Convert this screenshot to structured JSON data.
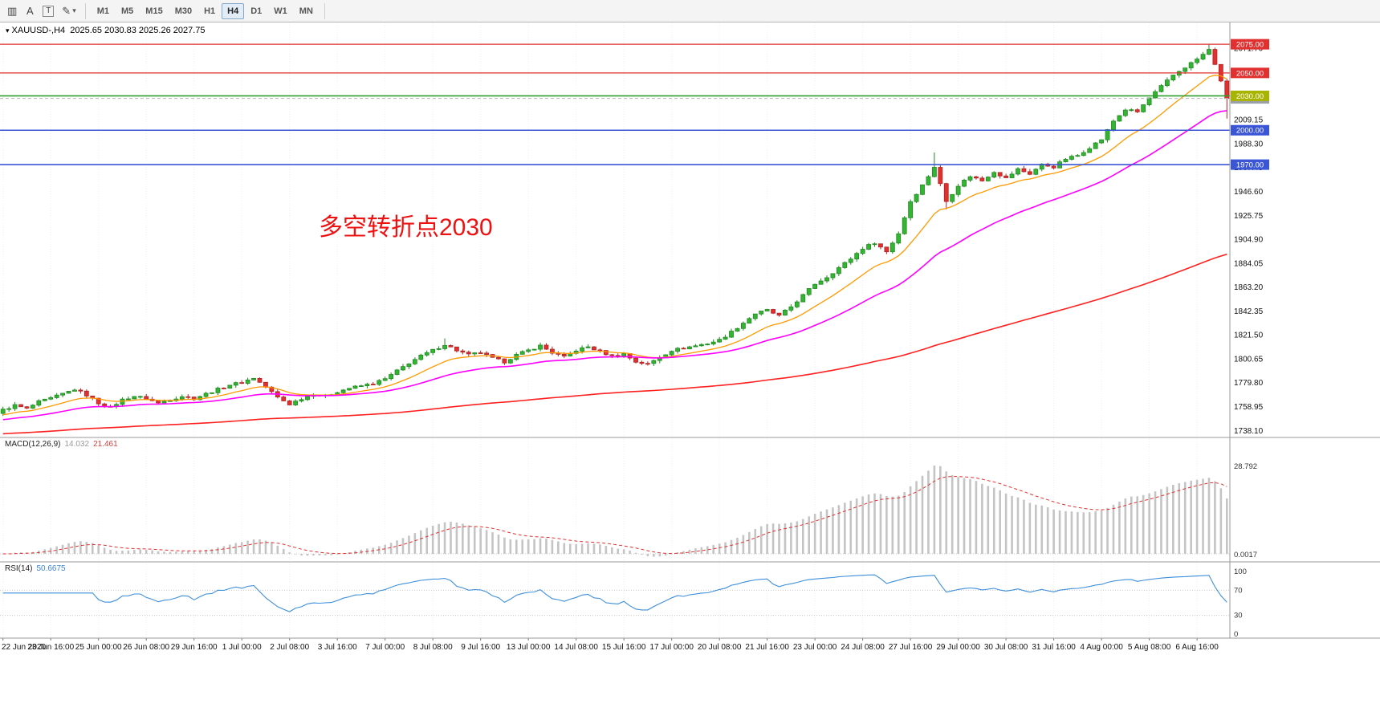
{
  "toolbar": {
    "icons": [
      {
        "name": "chart-bars-icon",
        "glyph": "▥"
      },
      {
        "name": "text-tool-icon",
        "glyph": "A"
      },
      {
        "name": "text-frame-tool-icon",
        "glyph": "T"
      },
      {
        "name": "draw-tools-icon",
        "glyph": "✎"
      },
      {
        "name": "dropdown-chevron-icon",
        "glyph": "▾"
      }
    ],
    "timeframes": [
      "M1",
      "M5",
      "M15",
      "M30",
      "H1",
      "H4",
      "D1",
      "W1",
      "MN"
    ],
    "active_timeframe": "H4"
  },
  "chart": {
    "dropdown_glyph": "▾",
    "title_symbol": "XAUUSD-,H4",
    "title_ohlc": "2025.65 2030.83 2025.26 2027.75",
    "annotation_text": "多空转折点2030",
    "annotation_color": "#ee1111"
  },
  "macd": {
    "name": "MACD(12,26,9)",
    "value1": "14.032",
    "value2": "21.461",
    "scale_top": "28.792",
    "scale_bottom": "0.0017"
  },
  "rsi": {
    "name": "RSI(14)",
    "value": "50.6675",
    "scale_labels": [
      "100",
      "70",
      "30",
      "0"
    ]
  },
  "chart_data": {
    "type": "candlestick",
    "symbol": "XAUUSD-",
    "period": "H4",
    "bars": 206,
    "bars_per_label": 8,
    "x_labels": [
      "22 Jun 2020",
      "23 Jun 16:00",
      "25 Jun 00:00",
      "26 Jun 08:00",
      "29 Jun 16:00",
      "1 Jul 00:00",
      "2 Jul 08:00",
      "3 Jul 16:00",
      "7 Jul 00:00",
      "8 Jul 08:00",
      "9 Jul 16:00",
      "13 Jul 00:00",
      "14 Jul 08:00",
      "15 Jul 16:00",
      "17 Jul 00:00",
      "20 Jul 08:00",
      "21 Jul 16:00",
      "23 Jul 00:00",
      "24 Jul 08:00",
      "27 Jul 16:00",
      "29 Jul 00:00",
      "30 Jul 08:00",
      "31 Jul 16:00",
      "4 Aug 00:00",
      "5 Aug 08:00",
      "6 Aug 16:00"
    ],
    "price_axis": {
      "min": 1732,
      "max": 2094,
      "tick_start": 2071.7,
      "tick_step": 20.85,
      "tick_count": 17
    },
    "first_open": 1753,
    "last_close": 2027.75,
    "noise": 1.1,
    "wick": 2.4,
    "close_anchors": [
      [
        0,
        1756
      ],
      [
        2,
        1760
      ],
      [
        4,
        1757
      ],
      [
        6,
        1763
      ],
      [
        8,
        1766
      ],
      [
        10,
        1770
      ],
      [
        12,
        1774
      ],
      [
        14,
        1769
      ],
      [
        16,
        1762
      ],
      [
        18,
        1758
      ],
      [
        20,
        1765
      ],
      [
        22,
        1768
      ],
      [
        24,
        1766
      ],
      [
        26,
        1762
      ],
      [
        28,
        1765
      ],
      [
        30,
        1768
      ],
      [
        32,
        1766
      ],
      [
        34,
        1770
      ],
      [
        36,
        1774
      ],
      [
        38,
        1778
      ],
      [
        40,
        1780
      ],
      [
        42,
        1784
      ],
      [
        44,
        1776
      ],
      [
        46,
        1767
      ],
      [
        48,
        1761
      ],
      [
        50,
        1766
      ],
      [
        52,
        1770
      ],
      [
        54,
        1768
      ],
      [
        56,
        1772
      ],
      [
        58,
        1775
      ],
      [
        60,
        1777
      ],
      [
        62,
        1779
      ],
      [
        64,
        1783
      ],
      [
        66,
        1790
      ],
      [
        68,
        1797
      ],
      [
        70,
        1803
      ],
      [
        72,
        1808
      ],
      [
        74,
        1813
      ],
      [
        76,
        1808
      ],
      [
        78,
        1804
      ],
      [
        80,
        1806
      ],
      [
        82,
        1801
      ],
      [
        84,
        1798
      ],
      [
        86,
        1804
      ],
      [
        88,
        1808
      ],
      [
        90,
        1812
      ],
      [
        92,
        1806
      ],
      [
        94,
        1802
      ],
      [
        96,
        1808
      ],
      [
        98,
        1811
      ],
      [
        100,
        1807
      ],
      [
        102,
        1803
      ],
      [
        104,
        1805
      ],
      [
        106,
        1798
      ],
      [
        108,
        1796
      ],
      [
        110,
        1802
      ],
      [
        112,
        1808
      ],
      [
        114,
        1810
      ],
      [
        116,
        1812
      ],
      [
        118,
        1814
      ],
      [
        120,
        1817
      ],
      [
        122,
        1824
      ],
      [
        124,
        1832
      ],
      [
        126,
        1840
      ],
      [
        128,
        1843
      ],
      [
        130,
        1838
      ],
      [
        132,
        1846
      ],
      [
        134,
        1856
      ],
      [
        136,
        1866
      ],
      [
        138,
        1872
      ],
      [
        140,
        1880
      ],
      [
        142,
        1888
      ],
      [
        144,
        1897
      ],
      [
        146,
        1902
      ],
      [
        148,
        1894
      ],
      [
        150,
        1910
      ],
      [
        152,
        1938
      ],
      [
        154,
        1952
      ],
      [
        156,
        1968
      ],
      [
        158,
        1938
      ],
      [
        160,
        1952
      ],
      [
        162,
        1960
      ],
      [
        164,
        1956
      ],
      [
        166,
        1964
      ],
      [
        168,
        1958
      ],
      [
        170,
        1966
      ],
      [
        172,
        1962
      ],
      [
        174,
        1970
      ],
      [
        176,
        1968
      ],
      [
        178,
        1975
      ],
      [
        180,
        1978
      ],
      [
        182,
        1985
      ],
      [
        184,
        1992
      ],
      [
        186,
        2008
      ],
      [
        188,
        2018
      ],
      [
        190,
        2016
      ],
      [
        192,
        2028
      ],
      [
        194,
        2038
      ],
      [
        196,
        2048
      ],
      [
        198,
        2055
      ],
      [
        200,
        2062
      ],
      [
        202,
        2070
      ],
      [
        203,
        2058
      ],
      [
        204,
        2042
      ],
      [
        205,
        2027.75
      ]
    ],
    "wick_overrides": {
      "74": {
        "h": 1818.4
      },
      "156": {
        "h": 1980.6
      },
      "158": {
        "l": 1931.0
      },
      "202": {
        "h": 2075.3
      },
      "205": {
        "l": 2010.2
      }
    },
    "up_color": "#33b533",
    "up_stroke": "#1e8a1e",
    "down_color": "#e03030",
    "down_stroke": "#b22222",
    "moving_averages": [
      {
        "name": "ma-fast-line",
        "color": "#ff9900",
        "period": 13,
        "init": 1751,
        "width": 1.3
      },
      {
        "name": "ma-mid-line",
        "color": "#ff00ff",
        "period": 34,
        "init": 1747,
        "width": 1.6
      },
      {
        "name": "ma-slow-line",
        "color": "#ff2020",
        "period": 180,
        "init": 1735,
        "width": 1.6
      }
    ],
    "hlines": [
      {
        "price": 2075.0,
        "color": "#e03030",
        "width": 1.2,
        "label": "2075.00",
        "badge": "#e03030"
      },
      {
        "price": 2050.0,
        "color": "#e03030",
        "width": 1.2,
        "label": "2050.00",
        "badge": "#e03030"
      },
      {
        "price": 2030.0,
        "color": "#2e9e2e",
        "width": 1.6,
        "label": "2030.00",
        "badge": "#a8b400"
      },
      {
        "price": 2000.0,
        "color": "#3a55d6",
        "width": 1.6,
        "label": "2000.00",
        "badge": "#3a55d6"
      },
      {
        "price": 1970.0,
        "color": "#3a55d6",
        "width": 1.6,
        "label": "1970.00",
        "badge": "#3a55d6"
      }
    ],
    "current_price": {
      "value": 2027.75,
      "label": "2027.75",
      "badge": "#9aa0a6",
      "line": "#b8b8b8"
    },
    "macd_params": {
      "fast": 12,
      "slow": 26,
      "signal": 9,
      "hist_color": "#c4c4c4",
      "signal_color": "#e03030"
    },
    "rsi_params": {
      "period": 14,
      "levels": [
        70,
        30
      ],
      "color": "#3d8edb"
    }
  }
}
